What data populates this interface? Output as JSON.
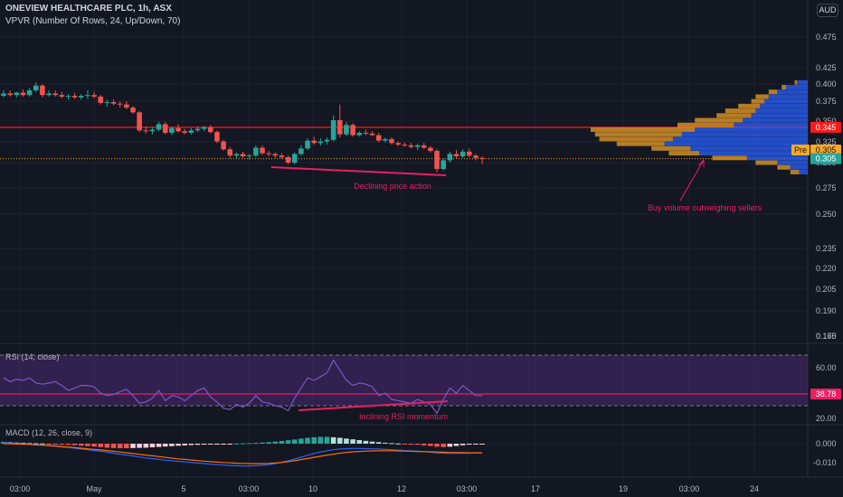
{
  "header": {
    "title": "ONEVIEW HEALTHCARE PLC, 1h, ASX",
    "indicator": "VPVR (Number Of Rows, 24, Up/Down, 70)",
    "currency": "AUD"
  },
  "colors": {
    "background": "#131722",
    "up": "#26a69a",
    "down": "#ef5350",
    "resistance": "#ff1a1a",
    "annotation": "#e91e63",
    "rsi_line": "#7e57c2",
    "rsi_band": "#4a2a73",
    "macd_line": "#2962ff",
    "signal_line": "#ff6d00",
    "vp_up": "#2962ff",
    "vp_down": "#f9a825"
  },
  "price_axis": {
    "ticks": [
      "0.475",
      "0.425",
      "0.400",
      "0.375",
      "0.350",
      "0.325",
      "0.300",
      "0.275",
      "0.250",
      "0.235",
      "0.220",
      "0.205",
      "0.190",
      "0.175",
      "0.160"
    ],
    "badges": [
      {
        "label": "0.345",
        "color": "#ff1a1a"
      },
      {
        "label": "Pre",
        "value": "0.305",
        "color": "#f9a825"
      },
      {
        "label": "0.305",
        "color": "#26a69a"
      }
    ]
  },
  "time_axis": [
    "03:00",
    "May",
    "5",
    "03:00",
    "10",
    "12",
    "03:00",
    "17",
    "19",
    "03:00",
    "24"
  ],
  "annotations": {
    "price": "Declining price action",
    "rsi": "Inclining RSI momentum",
    "volume": "Buy volume outweighing sellers"
  },
  "rsi": {
    "label": "RSI (14, close)",
    "ticks": [
      "60.00",
      "20.00"
    ],
    "badge": "38.78"
  },
  "macd": {
    "label": "MACD (12, 26, close, 9)",
    "ticks": [
      "0.000",
      "-0.010"
    ]
  },
  "chart_data": [
    {
      "type": "candlestick",
      "title": "ONEVIEW HEALTHCARE PLC, 1h, ASX",
      "ylim": [
        0.15,
        0.49
      ],
      "resistance_level": 0.345,
      "last_price": 0.305,
      "candles": [
        {
          "o": 0.385,
          "h": 0.392,
          "l": 0.383,
          "c": 0.388
        },
        {
          "o": 0.388,
          "h": 0.392,
          "l": 0.384,
          "c": 0.386
        },
        {
          "o": 0.386,
          "h": 0.39,
          "l": 0.383,
          "c": 0.389
        },
        {
          "o": 0.389,
          "h": 0.393,
          "l": 0.384,
          "c": 0.386
        },
        {
          "o": 0.386,
          "h": 0.395,
          "l": 0.384,
          "c": 0.392
        },
        {
          "o": 0.392,
          "h": 0.402,
          "l": 0.39,
          "c": 0.398
        },
        {
          "o": 0.398,
          "h": 0.4,
          "l": 0.383,
          "c": 0.386
        },
        {
          "o": 0.386,
          "h": 0.392,
          "l": 0.384,
          "c": 0.388
        },
        {
          "o": 0.388,
          "h": 0.392,
          "l": 0.384,
          "c": 0.386
        },
        {
          "o": 0.386,
          "h": 0.39,
          "l": 0.382,
          "c": 0.384
        },
        {
          "o": 0.384,
          "h": 0.387,
          "l": 0.38,
          "c": 0.385
        },
        {
          "o": 0.385,
          "h": 0.389,
          "l": 0.381,
          "c": 0.383
        },
        {
          "o": 0.383,
          "h": 0.387,
          "l": 0.38,
          "c": 0.385
        },
        {
          "o": 0.385,
          "h": 0.392,
          "l": 0.381,
          "c": 0.386
        },
        {
          "o": 0.386,
          "h": 0.39,
          "l": 0.382,
          "c": 0.384
        },
        {
          "o": 0.384,
          "h": 0.386,
          "l": 0.374,
          "c": 0.376
        },
        {
          "o": 0.376,
          "h": 0.38,
          "l": 0.371,
          "c": 0.377
        },
        {
          "o": 0.377,
          "h": 0.38,
          "l": 0.373,
          "c": 0.375
        },
        {
          "o": 0.375,
          "h": 0.378,
          "l": 0.37,
          "c": 0.374
        },
        {
          "o": 0.374,
          "h": 0.378,
          "l": 0.368,
          "c": 0.37
        },
        {
          "o": 0.37,
          "h": 0.372,
          "l": 0.362,
          "c": 0.364
        },
        {
          "o": 0.364,
          "h": 0.366,
          "l": 0.339,
          "c": 0.341
        },
        {
          "o": 0.341,
          "h": 0.346,
          "l": 0.337,
          "c": 0.34
        },
        {
          "o": 0.34,
          "h": 0.345,
          "l": 0.336,
          "c": 0.342
        },
        {
          "o": 0.342,
          "h": 0.352,
          "l": 0.34,
          "c": 0.349
        },
        {
          "o": 0.349,
          "h": 0.352,
          "l": 0.336,
          "c": 0.338
        },
        {
          "o": 0.338,
          "h": 0.346,
          "l": 0.335,
          "c": 0.344
        },
        {
          "o": 0.344,
          "h": 0.349,
          "l": 0.338,
          "c": 0.34
        },
        {
          "o": 0.34,
          "h": 0.343,
          "l": 0.336,
          "c": 0.338
        },
        {
          "o": 0.338,
          "h": 0.344,
          "l": 0.336,
          "c": 0.341
        },
        {
          "o": 0.341,
          "h": 0.346,
          "l": 0.339,
          "c": 0.343
        },
        {
          "o": 0.343,
          "h": 0.347,
          "l": 0.34,
          "c": 0.345
        },
        {
          "o": 0.345,
          "h": 0.348,
          "l": 0.337,
          "c": 0.339
        },
        {
          "o": 0.339,
          "h": 0.341,
          "l": 0.325,
          "c": 0.327
        },
        {
          "o": 0.327,
          "h": 0.329,
          "l": 0.315,
          "c": 0.317
        },
        {
          "o": 0.317,
          "h": 0.32,
          "l": 0.306,
          "c": 0.309
        },
        {
          "o": 0.309,
          "h": 0.313,
          "l": 0.305,
          "c": 0.311
        },
        {
          "o": 0.311,
          "h": 0.314,
          "l": 0.306,
          "c": 0.308
        },
        {
          "o": 0.308,
          "h": 0.311,
          "l": 0.304,
          "c": 0.309
        },
        {
          "o": 0.309,
          "h": 0.322,
          "l": 0.307,
          "c": 0.319
        },
        {
          "o": 0.319,
          "h": 0.322,
          "l": 0.31,
          "c": 0.312
        },
        {
          "o": 0.312,
          "h": 0.315,
          "l": 0.308,
          "c": 0.311
        },
        {
          "o": 0.311,
          "h": 0.313,
          "l": 0.306,
          "c": 0.309
        },
        {
          "o": 0.309,
          "h": 0.312,
          "l": 0.305,
          "c": 0.307
        },
        {
          "o": 0.307,
          "h": 0.309,
          "l": 0.298,
          "c": 0.3
        },
        {
          "o": 0.3,
          "h": 0.313,
          "l": 0.298,
          "c": 0.311
        },
        {
          "o": 0.311,
          "h": 0.322,
          "l": 0.309,
          "c": 0.318
        },
        {
          "o": 0.318,
          "h": 0.331,
          "l": 0.316,
          "c": 0.328
        },
        {
          "o": 0.328,
          "h": 0.333,
          "l": 0.323,
          "c": 0.325
        },
        {
          "o": 0.325,
          "h": 0.331,
          "l": 0.322,
          "c": 0.327
        },
        {
          "o": 0.327,
          "h": 0.332,
          "l": 0.323,
          "c": 0.329
        },
        {
          "o": 0.329,
          "h": 0.36,
          "l": 0.327,
          "c": 0.354
        },
        {
          "o": 0.354,
          "h": 0.374,
          "l": 0.332,
          "c": 0.336
        },
        {
          "o": 0.336,
          "h": 0.352,
          "l": 0.334,
          "c": 0.348
        },
        {
          "o": 0.348,
          "h": 0.35,
          "l": 0.333,
          "c": 0.335
        },
        {
          "o": 0.335,
          "h": 0.34,
          "l": 0.333,
          "c": 0.338
        },
        {
          "o": 0.338,
          "h": 0.342,
          "l": 0.335,
          "c": 0.337
        },
        {
          "o": 0.337,
          "h": 0.34,
          "l": 0.334,
          "c": 0.335
        },
        {
          "o": 0.335,
          "h": 0.338,
          "l": 0.326,
          "c": 0.328
        },
        {
          "o": 0.328,
          "h": 0.332,
          "l": 0.326,
          "c": 0.33
        },
        {
          "o": 0.33,
          "h": 0.332,
          "l": 0.323,
          "c": 0.325
        },
        {
          "o": 0.325,
          "h": 0.327,
          "l": 0.321,
          "c": 0.323
        },
        {
          "o": 0.323,
          "h": 0.326,
          "l": 0.32,
          "c": 0.322
        },
        {
          "o": 0.322,
          "h": 0.325,
          "l": 0.318,
          "c": 0.32
        },
        {
          "o": 0.32,
          "h": 0.324,
          "l": 0.316,
          "c": 0.322
        },
        {
          "o": 0.322,
          "h": 0.325,
          "l": 0.317,
          "c": 0.319
        },
        {
          "o": 0.319,
          "h": 0.321,
          "l": 0.313,
          "c": 0.315
        },
        {
          "o": 0.315,
          "h": 0.317,
          "l": 0.288,
          "c": 0.292
        },
        {
          "o": 0.292,
          "h": 0.305,
          "l": 0.29,
          "c": 0.303
        },
        {
          "o": 0.303,
          "h": 0.314,
          "l": 0.3,
          "c": 0.311
        },
        {
          "o": 0.311,
          "h": 0.316,
          "l": 0.305,
          "c": 0.308
        },
        {
          "o": 0.308,
          "h": 0.317,
          "l": 0.306,
          "c": 0.314
        },
        {
          "o": 0.314,
          "h": 0.318,
          "l": 0.307,
          "c": 0.309
        },
        {
          "o": 0.309,
          "h": 0.311,
          "l": 0.303,
          "c": 0.306
        },
        {
          "o": 0.306,
          "h": 0.308,
          "l": 0.298,
          "c": 0.305
        }
      ],
      "volume_profile": [
        {
          "price": 0.402,
          "up": 5,
          "down": 1
        },
        {
          "price": 0.396,
          "up": 10,
          "down": 2
        },
        {
          "price": 0.39,
          "up": 14,
          "down": 4
        },
        {
          "price": 0.384,
          "up": 18,
          "down": 6
        },
        {
          "price": 0.378,
          "up": 20,
          "down": 6
        },
        {
          "price": 0.372,
          "up": 22,
          "down": 10
        },
        {
          "price": 0.366,
          "up": 24,
          "down": 14
        },
        {
          "price": 0.36,
          "up": 26,
          "down": 16
        },
        {
          "price": 0.354,
          "up": 30,
          "down": 22
        },
        {
          "price": 0.348,
          "up": 34,
          "down": 26
        },
        {
          "price": 0.342,
          "up": 52,
          "down": 48
        },
        {
          "price": 0.336,
          "up": 58,
          "down": 40
        },
        {
          "price": 0.33,
          "up": 62,
          "down": 34
        },
        {
          "price": 0.324,
          "up": 66,
          "down": 22
        },
        {
          "price": 0.318,
          "up": 54,
          "down": 18
        },
        {
          "price": 0.312,
          "up": 50,
          "down": 14
        },
        {
          "price": 0.306,
          "up": 28,
          "down": 16
        },
        {
          "price": 0.3,
          "up": 14,
          "down": 10
        },
        {
          "price": 0.294,
          "up": 8,
          "down": 6
        },
        {
          "price": 0.288,
          "up": 4,
          "down": 4
        }
      ]
    },
    {
      "type": "line",
      "title": "RSI (14, close)",
      "ylim": [
        15,
        75
      ],
      "levels": [
        70,
        30
      ],
      "values": [
        52,
        49,
        51,
        50,
        52,
        48,
        47,
        48,
        49,
        46,
        42,
        44,
        46,
        46,
        45,
        40,
        38,
        39,
        41,
        43,
        38,
        32,
        33,
        36,
        42,
        34,
        38,
        37,
        34,
        38,
        42,
        44,
        37,
        33,
        28,
        27,
        31,
        29,
        32,
        38,
        33,
        32,
        30,
        29,
        26,
        36,
        44,
        52,
        50,
        53,
        56,
        66,
        58,
        50,
        46,
        48,
        47,
        45,
        38,
        40,
        35,
        34,
        33,
        32,
        35,
        33,
        31,
        24,
        35,
        44,
        40,
        46,
        42,
        38,
        38
      ]
    },
    {
      "type": "bar",
      "title": "MACD (12, 26, close, 9)",
      "ylim": [
        -0.014,
        0.006
      ],
      "histogram": [
        0.001,
        0.0008,
        0.0006,
        0.0005,
        0.0003,
        0.0002,
        0.0001,
        -0.0001,
        -0.0003,
        -0.0004,
        -0.0006,
        -0.0008,
        -0.0011,
        -0.0013,
        -0.0015,
        -0.0018,
        -0.0021,
        -0.0023,
        -0.0024,
        -0.0024,
        -0.0023,
        -0.0022,
        -0.0021,
        -0.0019,
        -0.0017,
        -0.0015,
        -0.0013,
        -0.0011,
        -0.0009,
        -0.0007,
        -0.0006,
        -0.0005,
        -0.0004,
        -0.0003,
        -0.0002,
        -0.0001,
        0.0001,
        0.0002,
        0.0003,
        0.0004,
        0.0006,
        0.0008,
        0.0011,
        0.0014,
        0.0018,
        0.0022,
        0.0027,
        0.0031,
        0.0034,
        0.0036,
        0.0036,
        0.0034,
        0.0031,
        0.0027,
        0.0023,
        0.0019,
        0.0015,
        0.0011,
        0.0008,
        0.0005,
        0.0003,
        0.0001,
        -0.0001,
        -0.0003,
        -0.0006,
        -0.0009,
        -0.0012,
        -0.0016,
        -0.0018,
        -0.0016,
        -0.0012,
        -0.0008,
        -0.0005,
        -0.0003,
        -0.0002
      ],
      "macd": [
        0.0005,
        0.0003,
        0.0001,
        -0.0001,
        -0.0003,
        -0.0005,
        -0.0008,
        -0.0011,
        -0.0014,
        -0.0017,
        -0.002,
        -0.0024,
        -0.0028,
        -0.0032,
        -0.0036,
        -0.004,
        -0.0045,
        -0.005,
        -0.0055,
        -0.006,
        -0.0065,
        -0.007,
        -0.0075,
        -0.0079,
        -0.0083,
        -0.0087,
        -0.009,
        -0.0093,
        -0.0096,
        -0.0099,
        -0.0102,
        -0.0105,
        -0.0108,
        -0.0111,
        -0.0113,
        -0.0115,
        -0.0116,
        -0.0117,
        -0.0117,
        -0.0116,
        -0.0114,
        -0.011,
        -0.0105,
        -0.0098,
        -0.009,
        -0.0081,
        -0.0071,
        -0.0061,
        -0.0052,
        -0.0044,
        -0.0037,
        -0.0032,
        -0.0028,
        -0.0026,
        -0.0025,
        -0.0025,
        -0.0026,
        -0.0027,
        -0.0028,
        -0.003,
        -0.0032,
        -0.0034,
        -0.0036,
        -0.0038,
        -0.004,
        -0.0042,
        -0.0045,
        -0.0048,
        -0.005,
        -0.0051,
        -0.0051,
        -0.005,
        -0.005,
        -0.0049,
        -0.0049
      ],
      "signal": [
        0.0,
        -0.0001,
        -0.0002,
        -0.0003,
        -0.0004,
        -0.0006,
        -0.0008,
        -0.001,
        -0.0012,
        -0.0015,
        -0.0018,
        -0.0021,
        -0.0024,
        -0.0027,
        -0.003,
        -0.0033,
        -0.0036,
        -0.004,
        -0.0044,
        -0.0048,
        -0.0052,
        -0.0056,
        -0.006,
        -0.0064,
        -0.0068,
        -0.0072,
        -0.0076,
        -0.008,
        -0.0083,
        -0.0086,
        -0.0089,
        -0.0092,
        -0.0095,
        -0.0097,
        -0.0099,
        -0.0101,
        -0.0103,
        -0.0104,
        -0.0105,
        -0.0105,
        -0.0105,
        -0.0104,
        -0.0102,
        -0.0099,
        -0.0095,
        -0.009,
        -0.0084,
        -0.0078,
        -0.0072,
        -0.0066,
        -0.006,
        -0.0055,
        -0.005,
        -0.0046,
        -0.0043,
        -0.0041,
        -0.0039,
        -0.0038,
        -0.0037,
        -0.0037,
        -0.0037,
        -0.0038,
        -0.0039,
        -0.004,
        -0.0041,
        -0.0042,
        -0.0043,
        -0.0044,
        -0.0045,
        -0.0046,
        -0.0047,
        -0.0047,
        -0.0048,
        -0.0048,
        -0.0048
      ]
    }
  ]
}
